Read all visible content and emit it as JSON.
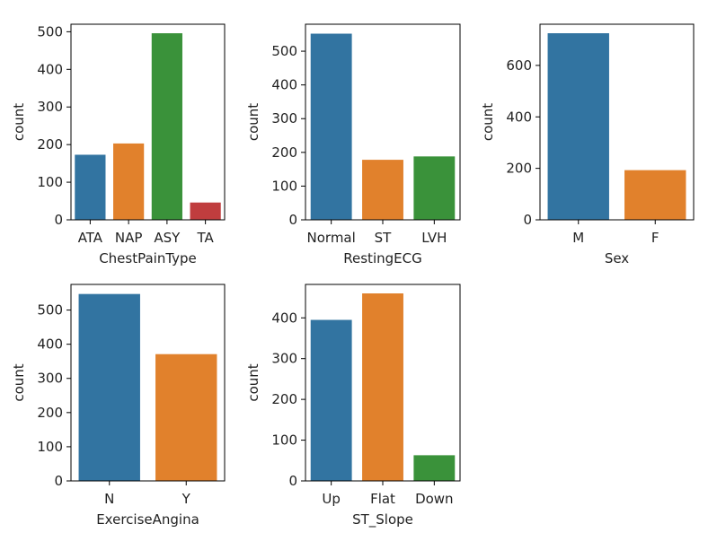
{
  "palette": [
    "#3274a1",
    "#e1812c",
    "#3a923a",
    "#c03d3e"
  ],
  "chart_data": [
    {
      "type": "bar",
      "categories": [
        "ATA",
        "NAP",
        "ASY",
        "TA"
      ],
      "values": [
        173,
        203,
        496,
        46
      ],
      "xlabel": "ChestPainType",
      "ylabel": "count",
      "ylim": [
        0,
        520
      ],
      "yticks": [
        0,
        100,
        200,
        300,
        400,
        500
      ]
    },
    {
      "type": "bar",
      "categories": [
        "Normal",
        "ST",
        "LVH"
      ],
      "values": [
        552,
        178,
        188
      ],
      "xlabel": "RestingECG",
      "ylabel": "count",
      "ylim": [
        0,
        580
      ],
      "yticks": [
        0,
        100,
        200,
        300,
        400,
        500
      ]
    },
    {
      "type": "bar",
      "categories": [
        "M",
        "F"
      ],
      "values": [
        725,
        193
      ],
      "xlabel": "Sex",
      "ylabel": "count",
      "ylim": [
        0,
        760
      ],
      "yticks": [
        0,
        200,
        400,
        600
      ]
    },
    {
      "type": "bar",
      "categories": [
        "N",
        "Y"
      ],
      "values": [
        547,
        371
      ],
      "xlabel": "ExerciseAngina",
      "ylabel": "count",
      "ylim": [
        0,
        575
      ],
      "yticks": [
        0,
        100,
        200,
        300,
        400,
        500
      ]
    },
    {
      "type": "bar",
      "categories": [
        "Up",
        "Flat",
        "Down"
      ],
      "values": [
        395,
        460,
        63
      ],
      "xlabel": "ST_Slope",
      "ylabel": "count",
      "ylim": [
        0,
        482
      ],
      "yticks": [
        0,
        100,
        200,
        300,
        400
      ]
    }
  ]
}
